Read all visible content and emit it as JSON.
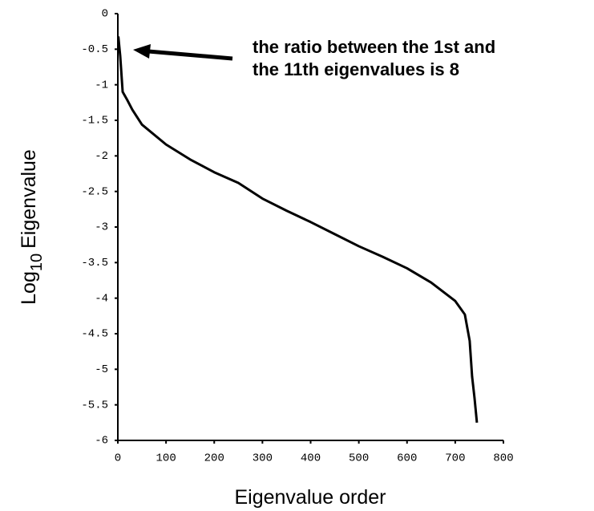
{
  "chart_data": {
    "type": "line",
    "ylabel": {
      "text": "Log",
      "subscript": "10",
      "after": "Eigenvalue"
    },
    "xlabel": "Eigenvalue order",
    "annotation": [
      "the ratio between the 1st and",
      "the 11th eigenvalues is 8"
    ],
    "xlim": [
      0,
      800
    ],
    "xticks": [
      0,
      100,
      200,
      300,
      400,
      500,
      600,
      700,
      800
    ],
    "ylim": [
      -6,
      0
    ],
    "yticks": [
      0,
      -0.5,
      -1,
      -1.5,
      -2,
      -2.5,
      -3,
      -3.5,
      -4,
      -4.5,
      -5,
      -5.5,
      -6
    ],
    "series": [
      {
        "color": "#000000",
        "x": [
          1,
          5,
          10,
          20,
          30,
          50,
          100,
          150,
          200,
          250,
          300,
          350,
          400,
          450,
          500,
          550,
          600,
          650,
          700,
          720,
          730,
          735,
          740,
          745
        ],
        "values": [
          -0.32,
          -0.6,
          -1.1,
          -1.22,
          -1.35,
          -1.56,
          -1.84,
          -2.05,
          -2.23,
          -2.38,
          -2.6,
          -2.77,
          -2.93,
          -3.1,
          -3.27,
          -3.42,
          -3.58,
          -3.78,
          -4.04,
          -4.23,
          -4.6,
          -5.1,
          -5.4,
          -5.75
        ]
      }
    ]
  }
}
